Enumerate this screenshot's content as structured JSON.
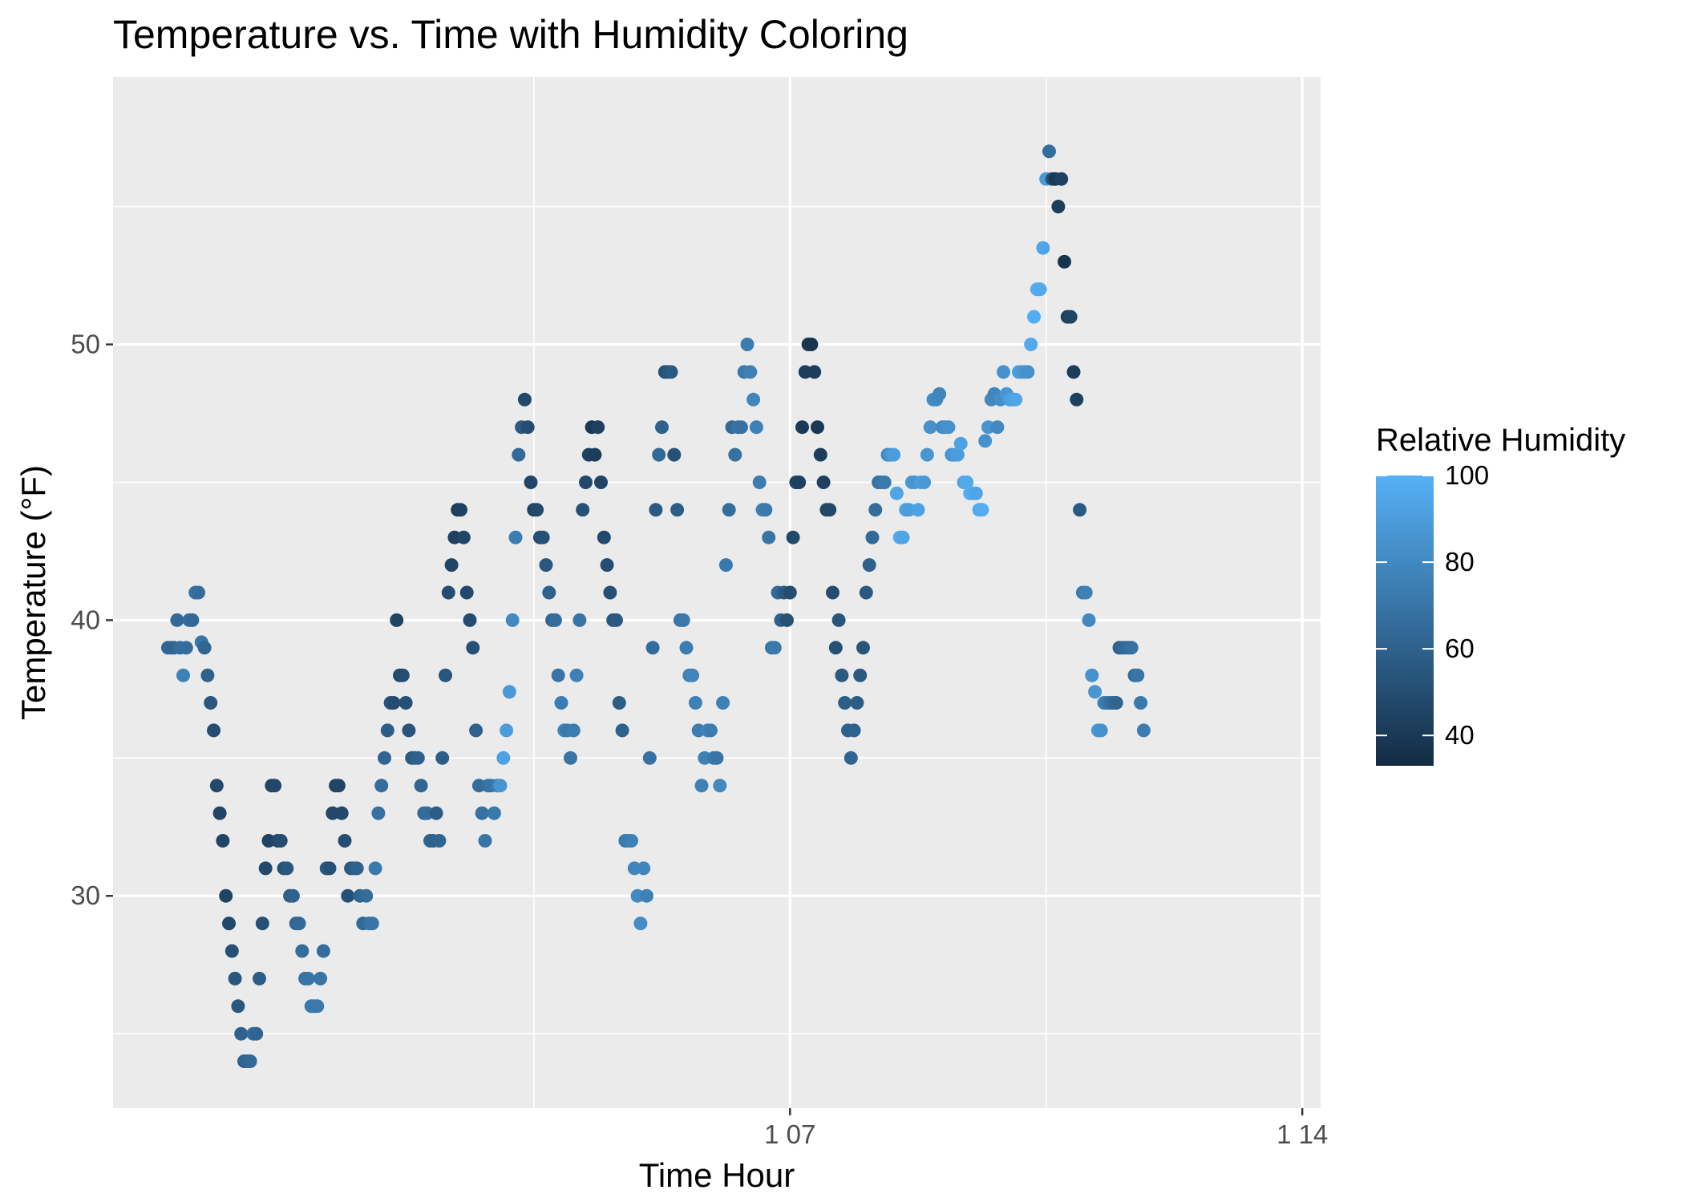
{
  "chart_data": {
    "type": "scatter",
    "title": "Temperature vs. Time with Humidity Coloring",
    "xlabel": "Time Hour",
    "ylabel": "Temperature (°F)",
    "x_unit": "hours",
    "x_ticks": [
      {
        "value": 144,
        "label": "1 07"
      },
      {
        "value": 312,
        "label": "1 14"
      }
    ],
    "xlim": [
      -78,
      318
    ],
    "y_ticks": [
      30,
      40,
      50
    ],
    "ylim": [
      22.3,
      59.7
    ],
    "grid": true,
    "legend": {
      "title": "Relative Humidity",
      "position": "right",
      "ticks": [
        40,
        60,
        80,
        100
      ],
      "range": [
        33,
        100
      ],
      "low_color": "#132B43",
      "high_color": "#56B1F7"
    },
    "points": [
      [
        -60,
        39.0,
        62
      ],
      [
        -59,
        39.0,
        62
      ],
      [
        -58,
        39.0,
        62
      ],
      [
        -57,
        40.0,
        64
      ],
      [
        -56,
        39.0,
        66
      ],
      [
        -55,
        38.0,
        76
      ],
      [
        -54,
        39.0,
        66
      ],
      [
        -53,
        40.0,
        66
      ],
      [
        -52,
        40.0,
        64
      ],
      [
        -51,
        41.0,
        68
      ],
      [
        -50,
        41.0,
        66
      ],
      [
        -49,
        39.2,
        70
      ],
      [
        -48,
        39.0,
        62
      ],
      [
        -47,
        38.0,
        60
      ],
      [
        -46,
        37.0,
        55
      ],
      [
        -45,
        36.0,
        50
      ],
      [
        -44,
        34.0,
        48
      ],
      [
        -43,
        33.0,
        46
      ],
      [
        -42,
        32.0,
        46
      ],
      [
        -41,
        30.0,
        45
      ],
      [
        -40,
        29.0,
        48
      ],
      [
        -39,
        28.0,
        52
      ],
      [
        -38,
        27.0,
        55
      ],
      [
        -37,
        26.0,
        55
      ],
      [
        -36,
        25.0,
        60
      ],
      [
        -35,
        24.0,
        60
      ],
      [
        -34,
        24.0,
        62
      ],
      [
        -33,
        24.0,
        64
      ],
      [
        -32,
        25.0,
        66
      ],
      [
        -31,
        25.0,
        62
      ],
      [
        -30,
        27.0,
        58
      ],
      [
        -29,
        29.0,
        52
      ],
      [
        -28,
        31.0,
        48
      ],
      [
        -27,
        32.0,
        45
      ],
      [
        -26,
        34.0,
        45
      ],
      [
        -25,
        34.0,
        47
      ],
      [
        -24,
        32.0,
        48
      ],
      [
        -23,
        32.0,
        50
      ],
      [
        -22,
        31.0,
        52
      ],
      [
        -21,
        31.0,
        55
      ],
      [
        -20,
        30.0,
        58
      ],
      [
        -19,
        30.0,
        60
      ],
      [
        -18,
        29.0,
        62
      ],
      [
        -17,
        29.0,
        64
      ],
      [
        -16,
        28.0,
        66
      ],
      [
        -15,
        27.0,
        68
      ],
      [
        -14,
        27.0,
        70
      ],
      [
        -13,
        26.0,
        72
      ],
      [
        -12,
        26.0,
        72
      ],
      [
        -11,
        26.0,
        72
      ],
      [
        -10,
        27.0,
        70
      ],
      [
        -9,
        28.0,
        66
      ],
      [
        -8,
        31.0,
        56
      ],
      [
        -7,
        31.0,
        52
      ],
      [
        -6,
        33.0,
        48
      ],
      [
        -5,
        34.0,
        45
      ],
      [
        -4,
        34.0,
        46
      ],
      [
        -3,
        33.0,
        48
      ],
      [
        -2,
        32.0,
        50
      ],
      [
        -1,
        30.0,
        52
      ],
      [
        0,
        31.0,
        55
      ],
      [
        1,
        31.0,
        58
      ],
      [
        2,
        31.0,
        60
      ],
      [
        3,
        30.0,
        62
      ],
      [
        4,
        29.0,
        64
      ],
      [
        5,
        30.0,
        66
      ],
      [
        6,
        29.0,
        68
      ],
      [
        7,
        29.0,
        70
      ],
      [
        8,
        31.0,
        72
      ],
      [
        9,
        33.0,
        68
      ],
      [
        10,
        34.0,
        66
      ],
      [
        11,
        35.0,
        62
      ],
      [
        12,
        36.0,
        58
      ],
      [
        13,
        37.0,
        54
      ],
      [
        14,
        37.0,
        50
      ],
      [
        15,
        40.0,
        45
      ],
      [
        16,
        38.0,
        48
      ],
      [
        17,
        38.0,
        50
      ],
      [
        18,
        37.0,
        52
      ],
      [
        19,
        36.0,
        54
      ],
      [
        20,
        35.0,
        56
      ],
      [
        21,
        35.0,
        58
      ],
      [
        22,
        35.0,
        60
      ],
      [
        23,
        34.0,
        62
      ],
      [
        24,
        33.0,
        64
      ],
      [
        25,
        33.0,
        66
      ],
      [
        26,
        32.0,
        62
      ],
      [
        27,
        32.0,
        60
      ],
      [
        28,
        33.0,
        58
      ],
      [
        29,
        32.0,
        62
      ],
      [
        30,
        35.0,
        58
      ],
      [
        31,
        38.0,
        54
      ],
      [
        32,
        41.0,
        50
      ],
      [
        33,
        42.0,
        46
      ],
      [
        34,
        43.0,
        44
      ],
      [
        35,
        44.0,
        42
      ],
      [
        36,
        44.0,
        44
      ],
      [
        37,
        43.0,
        46
      ],
      [
        38,
        41.0,
        48
      ],
      [
        39,
        40.0,
        50
      ],
      [
        40,
        39.0,
        52
      ],
      [
        41,
        36.0,
        60
      ],
      [
        42,
        34.0,
        66
      ],
      [
        43,
        33.0,
        68
      ],
      [
        44,
        32.0,
        70
      ],
      [
        45,
        34.0,
        68
      ],
      [
        46,
        34.0,
        70
      ],
      [
        47,
        33.0,
        72
      ],
      [
        48,
        34.0,
        74
      ],
      [
        49,
        34.0,
        86
      ],
      [
        50,
        35.0,
        92
      ],
      [
        51,
        36.0,
        90
      ],
      [
        52,
        37.4,
        88
      ],
      [
        53,
        40.0,
        80
      ],
      [
        54,
        43.0,
        74
      ],
      [
        55,
        46.0,
        64
      ],
      [
        56,
        47.0,
        56
      ],
      [
        57,
        48.0,
        48
      ],
      [
        58,
        47.0,
        50
      ],
      [
        59,
        45.0,
        46
      ],
      [
        60,
        44.0,
        44
      ],
      [
        61,
        44.0,
        48
      ],
      [
        62,
        43.0,
        50
      ],
      [
        63,
        43.0,
        52
      ],
      [
        64,
        42.0,
        55
      ],
      [
        65,
        41.0,
        60
      ],
      [
        66,
        40.0,
        62
      ],
      [
        67,
        40.0,
        66
      ],
      [
        68,
        38.0,
        70
      ],
      [
        69,
        37.0,
        74
      ],
      [
        70,
        36.0,
        76
      ],
      [
        71,
        36.0,
        72
      ],
      [
        72,
        35.0,
        70
      ],
      [
        73,
        36.0,
        74
      ],
      [
        74,
        38.0,
        76
      ],
      [
        75,
        40.0,
        70
      ],
      [
        76,
        44.0,
        52
      ],
      [
        77,
        45.0,
        48
      ],
      [
        78,
        46.0,
        44
      ],
      [
        79,
        47.0,
        40
      ],
      [
        80,
        46.0,
        42
      ],
      [
        81,
        47.0,
        44
      ],
      [
        82,
        45.0,
        46
      ],
      [
        83,
        43.0,
        48
      ],
      [
        84,
        42.0,
        50
      ],
      [
        85,
        41.0,
        52
      ],
      [
        86,
        40.0,
        54
      ],
      [
        87,
        40.0,
        56
      ],
      [
        88,
        37.0,
        58
      ],
      [
        89,
        36.0,
        60
      ],
      [
        90,
        32.0,
        72
      ],
      [
        91,
        32.0,
        74
      ],
      [
        92,
        32.0,
        76
      ],
      [
        93,
        31.0,
        78
      ],
      [
        94,
        30.0,
        80
      ],
      [
        95,
        29.0,
        82
      ],
      [
        96,
        31.0,
        78
      ],
      [
        97,
        30.0,
        76
      ],
      [
        98,
        35.0,
        68
      ],
      [
        99,
        39.0,
        66
      ],
      [
        100,
        44.0,
        56
      ],
      [
        101,
        46.0,
        64
      ],
      [
        102,
        47.0,
        60
      ],
      [
        103,
        49.0,
        52
      ],
      [
        104,
        49.0,
        54
      ],
      [
        105,
        49.0,
        56
      ],
      [
        106,
        46.0,
        52
      ],
      [
        107,
        44.0,
        58
      ],
      [
        108,
        40.0,
        70
      ],
      [
        109,
        40.0,
        72
      ],
      [
        110,
        39.0,
        74
      ],
      [
        111,
        38.0,
        76
      ],
      [
        112,
        38.0,
        78
      ],
      [
        113,
        37.0,
        76
      ],
      [
        114,
        36.0,
        74
      ],
      [
        115,
        34.0,
        76
      ],
      [
        116,
        35.0,
        76
      ],
      [
        117,
        36.0,
        78
      ],
      [
        118,
        36.0,
        74
      ],
      [
        119,
        35.0,
        72
      ],
      [
        120,
        35.0,
        70
      ],
      [
        121,
        34.0,
        80
      ],
      [
        122,
        37.0,
        76
      ],
      [
        123,
        42.0,
        72
      ],
      [
        124,
        44.0,
        66
      ],
      [
        125,
        47.0,
        64
      ],
      [
        126,
        46.0,
        68
      ],
      [
        127,
        47.0,
        70
      ],
      [
        128,
        47.0,
        68
      ],
      [
        129,
        49.0,
        72
      ],
      [
        130,
        50.0,
        74
      ],
      [
        131,
        49.0,
        76
      ],
      [
        132,
        48.0,
        78
      ],
      [
        133,
        47.0,
        76
      ],
      [
        134,
        45.0,
        74
      ],
      [
        135,
        44.0,
        76
      ],
      [
        136,
        44.0,
        72
      ],
      [
        137,
        43.0,
        70
      ],
      [
        138,
        39.0,
        70
      ],
      [
        139,
        39.0,
        72
      ],
      [
        140,
        41.0,
        64
      ],
      [
        141,
        40.0,
        60
      ],
      [
        142,
        41.0,
        56
      ],
      [
        143,
        40.0,
        52
      ],
      [
        144,
        41.0,
        50
      ],
      [
        145,
        43.0,
        48
      ],
      [
        146,
        45.0,
        46
      ],
      [
        147,
        45.0,
        44
      ],
      [
        148,
        47.0,
        40
      ],
      [
        149,
        49.0,
        42
      ],
      [
        150,
        50.0,
        40
      ],
      [
        151,
        50.0,
        38
      ],
      [
        152,
        49.0,
        42
      ],
      [
        153,
        47.0,
        40
      ],
      [
        154,
        46.0,
        42
      ],
      [
        155,
        45.0,
        44
      ],
      [
        156,
        44.0,
        46
      ],
      [
        157,
        44.0,
        48
      ],
      [
        158,
        41.0,
        50
      ],
      [
        159,
        39.0,
        52
      ],
      [
        160,
        40.0,
        54
      ],
      [
        161,
        38.0,
        56
      ],
      [
        162,
        37.0,
        58
      ],
      [
        163,
        36.0,
        60
      ],
      [
        164,
        35.0,
        62
      ],
      [
        165,
        36.0,
        60
      ],
      [
        166,
        37.0,
        58
      ],
      [
        167,
        38.0,
        56
      ],
      [
        168,
        39.0,
        54
      ],
      [
        169,
        41.0,
        56
      ],
      [
        170,
        42.0,
        60
      ],
      [
        171,
        43.0,
        64
      ],
      [
        172,
        44.0,
        66
      ],
      [
        173,
        45.0,
        68
      ],
      [
        174,
        45.0,
        70
      ],
      [
        175,
        45.0,
        72
      ],
      [
        176,
        46.0,
        80
      ],
      [
        177,
        46.0,
        86
      ],
      [
        178,
        46.0,
        90
      ],
      [
        179,
        44.6,
        94
      ],
      [
        180,
        43.0,
        96
      ],
      [
        181,
        43.0,
        94
      ],
      [
        182,
        44.0,
        92
      ],
      [
        183,
        44.0,
        90
      ],
      [
        184,
        45.0,
        88
      ],
      [
        185,
        45.0,
        86
      ],
      [
        186,
        44.0,
        92
      ],
      [
        187,
        45.0,
        90
      ],
      [
        188,
        45.0,
        88
      ],
      [
        189,
        46.0,
        86
      ],
      [
        190,
        47.0,
        84
      ],
      [
        191,
        48.0,
        82
      ],
      [
        192,
        48.0,
        80
      ],
      [
        193,
        48.2,
        78
      ],
      [
        194,
        47.0,
        80
      ],
      [
        195,
        47.0,
        82
      ],
      [
        196,
        47.0,
        84
      ],
      [
        197,
        46.0,
        86
      ],
      [
        198,
        46.0,
        88
      ],
      [
        199,
        46.0,
        90
      ],
      [
        200,
        46.4,
        92
      ],
      [
        201,
        45.0,
        94
      ],
      [
        202,
        45.0,
        96
      ],
      [
        203,
        44.6,
        98
      ],
      [
        204,
        44.6,
        96
      ],
      [
        205,
        44.6,
        94
      ],
      [
        206,
        44.0,
        96
      ],
      [
        207,
        44.0,
        98
      ],
      [
        208,
        46.5,
        84
      ],
      [
        209,
        47.0,
        86
      ],
      [
        210,
        48.0,
        80
      ],
      [
        211,
        48.2,
        78
      ],
      [
        212,
        47.0,
        80
      ],
      [
        213,
        48.0,
        82
      ],
      [
        214,
        49.0,
        84
      ],
      [
        215,
        48.2,
        86
      ],
      [
        216,
        48.0,
        90
      ],
      [
        217,
        48.0,
        92
      ],
      [
        218,
        48.0,
        94
      ],
      [
        219,
        49.0,
        90
      ],
      [
        220,
        49.0,
        88
      ],
      [
        221,
        49.0,
        86
      ],
      [
        222,
        49.0,
        84
      ],
      [
        223,
        50.0,
        96
      ],
      [
        224,
        51.0,
        98
      ],
      [
        225,
        52.0,
        98
      ],
      [
        226,
        52.0,
        96
      ],
      [
        227,
        53.5,
        94
      ],
      [
        228,
        56.0,
        88
      ],
      [
        229,
        57.0,
        66
      ],
      [
        230,
        56.0,
        52
      ],
      [
        231,
        56.0,
        40
      ],
      [
        232,
        55.0,
        42
      ],
      [
        233,
        56.0,
        44
      ],
      [
        234,
        53.0,
        38
      ],
      [
        235,
        51.0,
        44
      ],
      [
        236,
        51.0,
        46
      ],
      [
        237,
        49.0,
        42
      ],
      [
        238,
        48.0,
        44
      ],
      [
        239,
        44.0,
        56
      ],
      [
        240,
        41.0,
        72
      ],
      [
        241,
        41.0,
        76
      ],
      [
        242,
        40.0,
        80
      ],
      [
        243,
        38.0,
        84
      ],
      [
        244,
        37.4,
        86
      ],
      [
        245,
        36.0,
        88
      ],
      [
        246,
        36.0,
        84
      ],
      [
        247,
        37.0,
        76
      ],
      [
        248,
        37.0,
        72
      ],
      [
        249,
        37.0,
        68
      ],
      [
        250,
        37.0,
        64
      ],
      [
        251,
        37.0,
        62
      ],
      [
        252,
        39.0,
        60
      ],
      [
        253,
        39.0,
        62
      ],
      [
        254,
        39.0,
        64
      ],
      [
        255,
        39.0,
        66
      ],
      [
        256,
        39.0,
        68
      ],
      [
        257,
        38.0,
        66
      ],
      [
        258,
        38.0,
        70
      ],
      [
        259,
        37.0,
        72
      ],
      [
        260,
        36.0,
        74
      ]
    ]
  }
}
